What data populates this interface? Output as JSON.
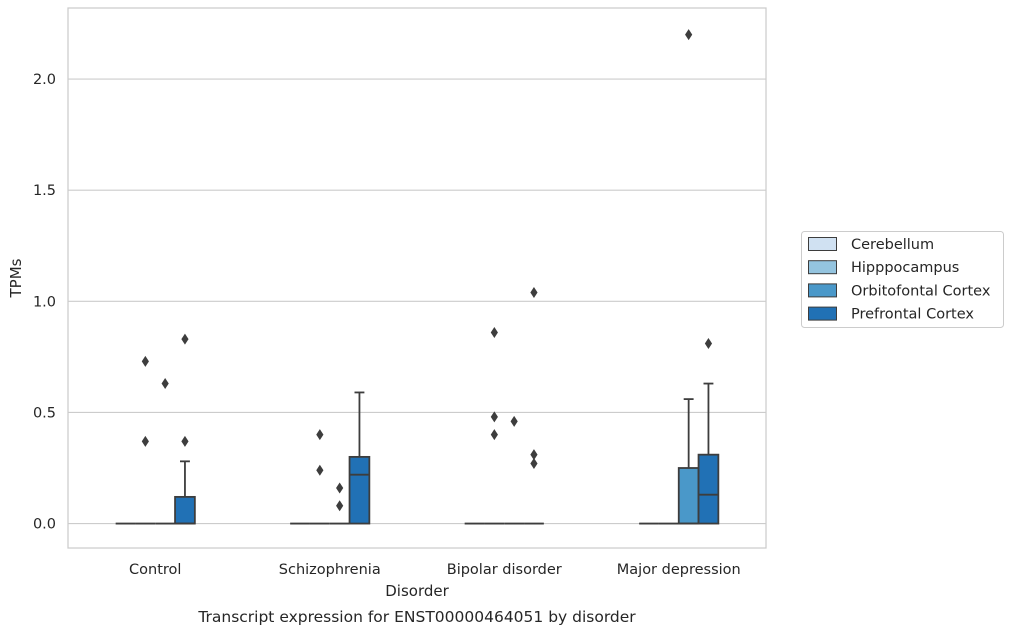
{
  "chart_data": {
    "type": "box",
    "caption": "Transcript expression for ENST00000464051 by disorder",
    "xlabel": "Disorder",
    "ylabel": "TPMs",
    "ylim": [
      -0.11,
      2.32
    ],
    "yticks": [
      0.0,
      0.5,
      1.0,
      1.5,
      2.0
    ],
    "ytick_labels": [
      "0.0",
      "0.5",
      "1.0",
      "1.5",
      "2.0"
    ],
    "grid": "horizontal",
    "legend_position": "right",
    "categories": [
      "Control",
      "Schizophrenia",
      "Bipolar disorder",
      "Major depression"
    ],
    "series": [
      {
        "name": "Cerebellum",
        "color": "#d0e1f2",
        "boxes": [
          {
            "q1": 0,
            "median": 0,
            "q3": 0,
            "whisker_low": 0,
            "whisker_high": 0,
            "outliers": []
          },
          {
            "q1": 0,
            "median": 0,
            "q3": 0,
            "whisker_low": 0,
            "whisker_high": 0,
            "outliers": []
          },
          {
            "q1": 0,
            "median": 0,
            "q3": 0,
            "whisker_low": 0,
            "whisker_high": 0,
            "outliers": []
          },
          {
            "q1": 0,
            "median": 0,
            "q3": 0,
            "whisker_low": 0,
            "whisker_high": 0,
            "outliers": []
          }
        ]
      },
      {
        "name": "Hipppocampus",
        "color": "#94c4df",
        "boxes": [
          {
            "q1": 0,
            "median": 0,
            "q3": 0,
            "whisker_low": 0,
            "whisker_high": 0,
            "outliers": [
              0.37,
              0.73
            ]
          },
          {
            "q1": 0,
            "median": 0,
            "q3": 0,
            "whisker_low": 0,
            "whisker_high": 0,
            "outliers": [
              0.24,
              0.4
            ]
          },
          {
            "q1": 0,
            "median": 0,
            "q3": 0,
            "whisker_low": 0,
            "whisker_high": 0,
            "outliers": [
              0.4,
              0.48,
              0.86
            ]
          },
          {
            "q1": 0,
            "median": 0,
            "q3": 0,
            "whisker_low": 0,
            "whisker_high": 0,
            "outliers": []
          }
        ]
      },
      {
        "name": "Orbitofontal Cortex",
        "color": "#4a98c9",
        "boxes": [
          {
            "q1": 0,
            "median": 0,
            "q3": 0,
            "whisker_low": 0,
            "whisker_high": 0,
            "outliers": [
              0.63
            ]
          },
          {
            "q1": 0,
            "median": 0,
            "q3": 0,
            "whisker_low": 0,
            "whisker_high": 0,
            "outliers": [
              0.08,
              0.16
            ]
          },
          {
            "q1": 0,
            "median": 0,
            "q3": 0,
            "whisker_low": 0,
            "whisker_high": 0,
            "outliers": [
              0.46
            ]
          },
          {
            "q1": 0,
            "median": 0,
            "q3": 0.25,
            "whisker_low": 0,
            "whisker_high": 0.56,
            "outliers": [
              2.2
            ]
          }
        ]
      },
      {
        "name": "Prefrontal Cortex",
        "color": "#2171b5",
        "boxes": [
          {
            "q1": 0,
            "median": 0,
            "q3": 0.12,
            "whisker_low": 0,
            "whisker_high": 0.28,
            "outliers": [
              0.37,
              0.83
            ]
          },
          {
            "q1": 0,
            "median": 0.22,
            "q3": 0.3,
            "whisker_low": 0,
            "whisker_high": 0.59,
            "outliers": []
          },
          {
            "q1": 0,
            "median": 0,
            "q3": 0,
            "whisker_low": 0,
            "whisker_high": 0,
            "outliers": [
              0.27,
              0.31,
              1.04
            ]
          },
          {
            "q1": 0,
            "median": 0.13,
            "q3": 0.31,
            "whisker_low": 0,
            "whisker_high": 0.63,
            "outliers": [
              0.81
            ]
          }
        ]
      }
    ]
  }
}
